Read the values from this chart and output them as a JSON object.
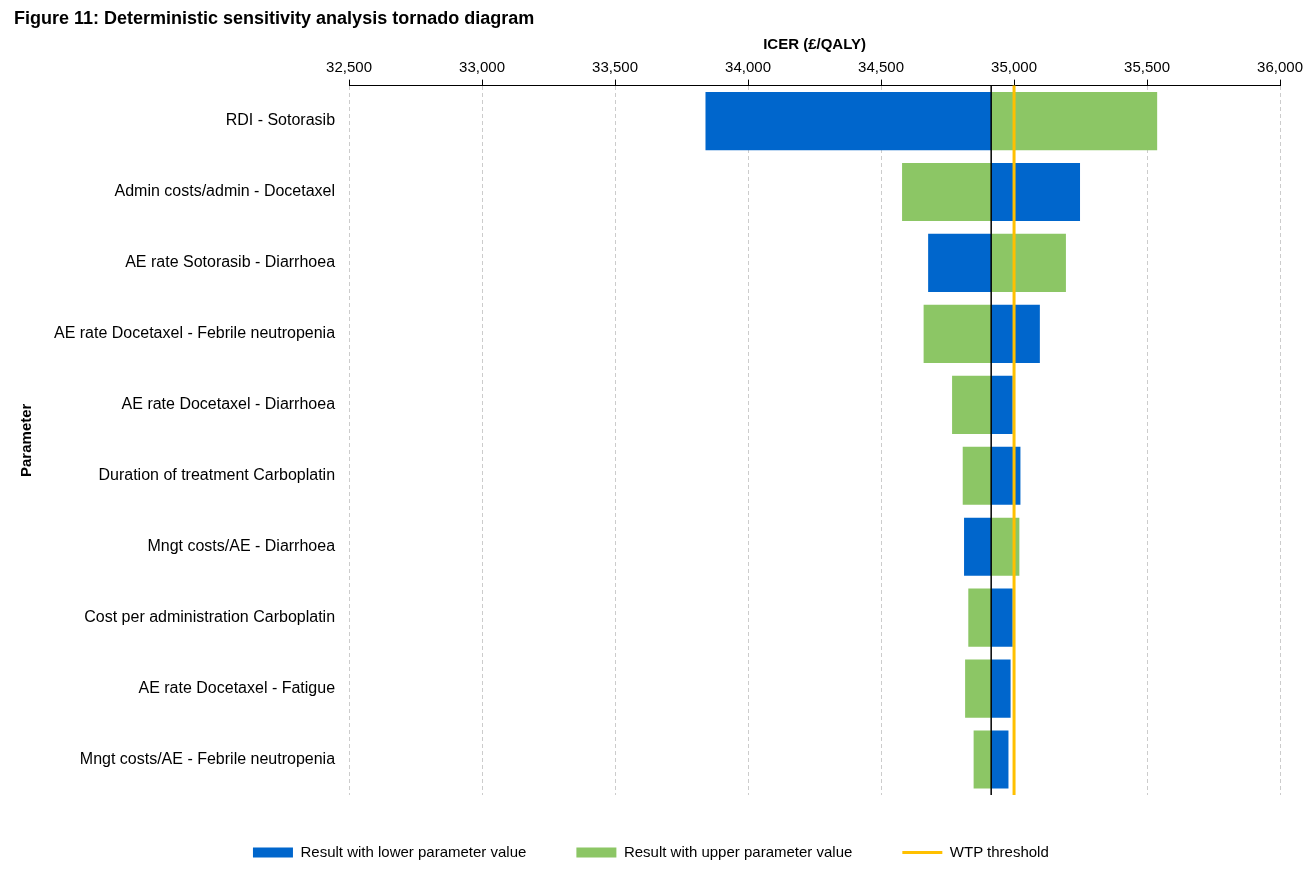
{
  "chart_data": {
    "type": "bar",
    "orientation": "horizontal",
    "title": "Figure 11: Deterministic sensitivity analysis tornado diagram",
    "xlabel": "ICER (£/QALY)",
    "ylabel": "Parameter",
    "categories": [
      "RDI - Sotorasib",
      "Admin costs/admin - Docetaxel",
      "AE rate Sotorasib - Diarrhoea",
      "AE rate Docetaxel - Febrile neutropenia",
      "AE rate Docetaxel - Diarrhoea",
      "Duration of treatment Carboplatin",
      "Mngt costs/AE - Diarrhoea",
      "Cost per administration Carboplatin",
      "AE rate Docetaxel - Fatigue",
      "Mngt costs/AE - Febrile neutropenia"
    ],
    "series": [
      {
        "name": "Result with lower parameter value",
        "color": "#0066cc",
        "base": [
          33840,
          34914,
          34677,
          34914,
          34914,
          34914,
          34812,
          34914,
          34914,
          34914
        ],
        "values": [
          1074,
          334,
          237,
          183,
          81,
          110,
          102,
          81,
          73,
          65
        ]
      },
      {
        "name": "Result with upper parameter value",
        "color": "#8cc665",
        "base": [
          34914,
          34579,
          34914,
          34660,
          34767,
          34807,
          34914,
          34828,
          34816,
          34848
        ],
        "values": [
          624,
          335,
          281,
          254,
          147,
          107,
          106,
          86,
          98,
          66
        ]
      }
    ],
    "xlim": [
      32500,
      36000
    ],
    "xticks": [
      {
        "value": 32500,
        "label": "32,500"
      },
      {
        "value": 33000,
        "label": "33,000"
      },
      {
        "value": 33500,
        "label": "33,500"
      },
      {
        "value": 34000,
        "label": "34,000"
      },
      {
        "value": 34500,
        "label": "34,500"
      },
      {
        "value": 35000,
        "label": "35,000"
      },
      {
        "value": 35500,
        "label": "35,500"
      },
      {
        "value": 36000,
        "label": "36,000"
      }
    ],
    "grid": "x",
    "legend": "bottom",
    "ref_lines": [
      {
        "axis": "x",
        "value": 34914,
        "color": "#000000"
      },
      {
        "axis": "x",
        "value": 35000,
        "label": "WTP threshold",
        "color": "#ffc000"
      }
    ]
  }
}
